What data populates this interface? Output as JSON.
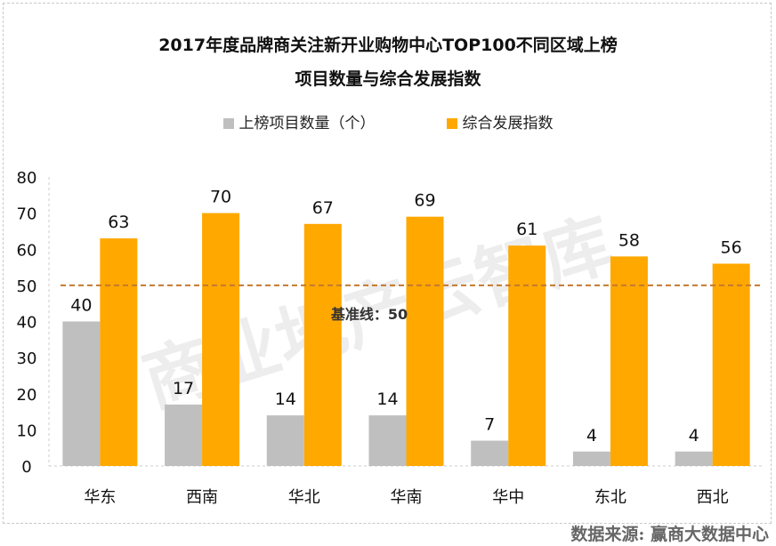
{
  "chart_data": {
    "type": "bar",
    "title_line1": "2017年度品牌商关注新开业购物中心TOP100不同区域上榜",
    "title_line2": "项目数量与综合发展指数",
    "categories": [
      "华东",
      "西南",
      "华北",
      "华南",
      "华中",
      "东北",
      "西北"
    ],
    "series": [
      {
        "name": "上榜项目数量（个）",
        "values": [
          40,
          17,
          14,
          14,
          7,
          4,
          4
        ],
        "color": "#bfbfbf"
      },
      {
        "name": "综合发展指数",
        "values": [
          63,
          70,
          67,
          69,
          61,
          58,
          56
        ],
        "color": "#ffa800"
      }
    ],
    "ylim": [
      0,
      80
    ],
    "yticks": [
      0,
      10,
      20,
      30,
      40,
      50,
      60,
      70,
      80
    ],
    "reference_line": {
      "value": 50,
      "label": "基准线：50",
      "color": "#c5782e"
    },
    "legend_position": "top",
    "grid": false
  },
  "watermark": "商业地产云智库",
  "source": "数据来源:  赢商大数据中心"
}
